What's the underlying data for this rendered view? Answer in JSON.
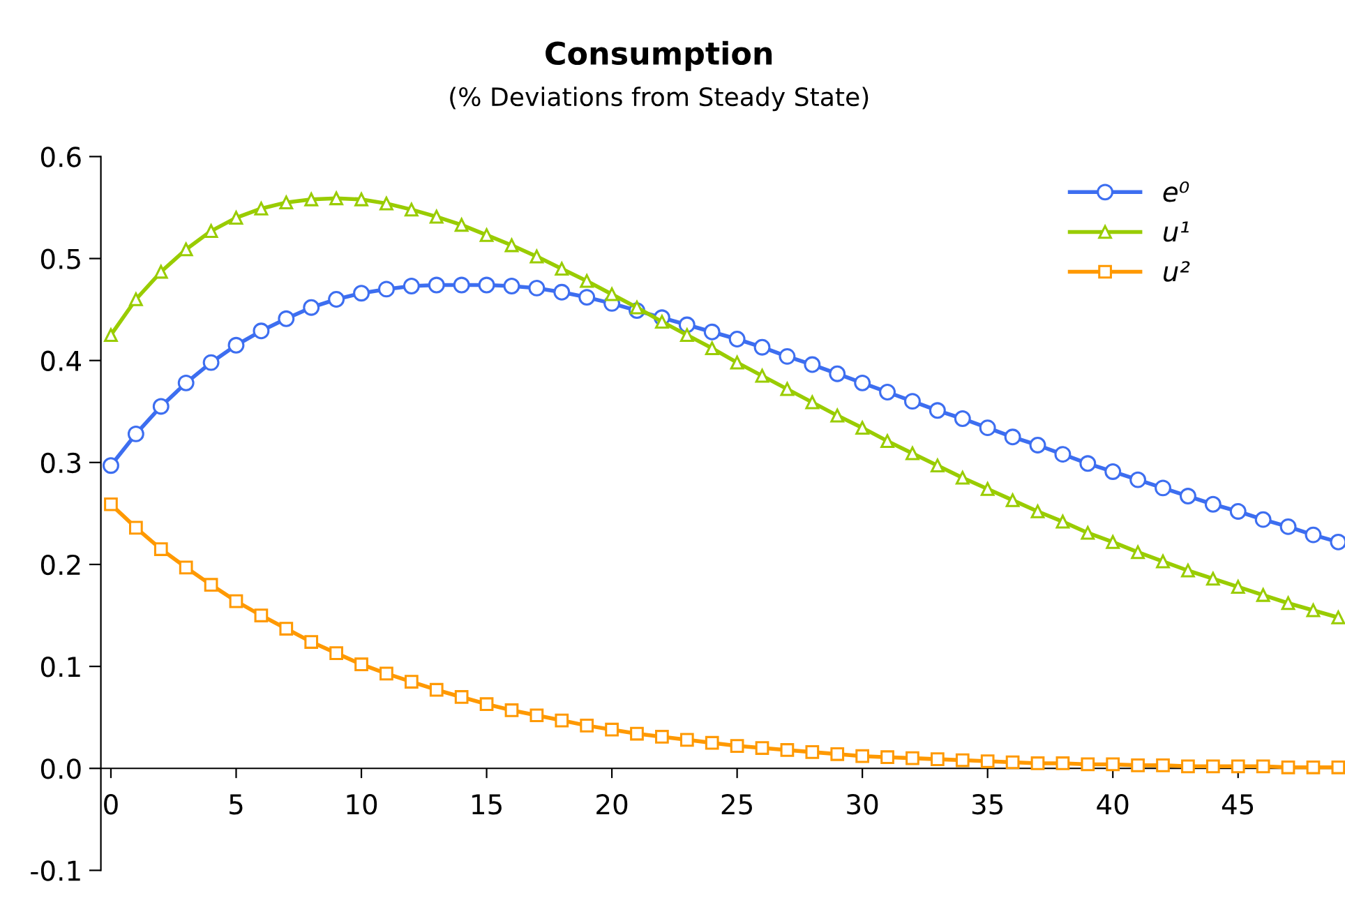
{
  "chart_data": {
    "type": "line",
    "title": "Consumption",
    "subtitle": "(% Deviations from Steady State)",
    "x": [
      0,
      1,
      2,
      3,
      4,
      5,
      6,
      7,
      8,
      9,
      10,
      11,
      12,
      13,
      14,
      15,
      16,
      17,
      18,
      19,
      20,
      21,
      22,
      23,
      24,
      25,
      26,
      27,
      28,
      29,
      30,
      31,
      32,
      33,
      34,
      35,
      36,
      37,
      38,
      39,
      40,
      41,
      42,
      43,
      44,
      45,
      46,
      47,
      48,
      49
    ],
    "xlim": [
      -0.4,
      49
    ],
    "xticks": [
      0,
      5,
      10,
      15,
      20,
      25,
      30,
      35,
      40,
      45
    ],
    "ylim": [
      -0.1,
      0.6
    ],
    "yticks": [
      {
        "value": -0.1,
        "label": "-0.1"
      },
      {
        "value": 0,
        "label": "0.0"
      },
      0.1,
      0.2,
      0.3,
      0.4,
      0.5,
      0.6
    ],
    "grid": false,
    "legend": "top right",
    "series": [
      {
        "name": "e⁰",
        "color": "#3d6ef0",
        "marker": "circle",
        "values": [
          0.297,
          0.328,
          0.355,
          0.378,
          0.398,
          0.415,
          0.429,
          0.441,
          0.452,
          0.46,
          0.466,
          0.47,
          0.473,
          0.474,
          0.474,
          0.474,
          0.473,
          0.471,
          0.467,
          0.462,
          0.456,
          0.449,
          0.442,
          0.435,
          0.428,
          0.421,
          0.413,
          0.404,
          0.396,
          0.387,
          0.378,
          0.369,
          0.36,
          0.351,
          0.343,
          0.334,
          0.325,
          0.317,
          0.308,
          0.299,
          0.291,
          0.283,
          0.275,
          0.267,
          0.259,
          0.252,
          0.244,
          0.237,
          0.229,
          0.222
        ]
      },
      {
        "name": "u¹",
        "color": "#99cc00",
        "marker": "triangle",
        "values": [
          0.425,
          0.46,
          0.487,
          0.509,
          0.527,
          0.54,
          0.549,
          0.555,
          0.558,
          0.559,
          0.558,
          0.554,
          0.548,
          0.541,
          0.533,
          0.523,
          0.513,
          0.502,
          0.49,
          0.478,
          0.465,
          0.452,
          0.438,
          0.425,
          0.412,
          0.398,
          0.385,
          0.372,
          0.359,
          0.346,
          0.334,
          0.321,
          0.309,
          0.297,
          0.285,
          0.274,
          0.263,
          0.252,
          0.242,
          0.231,
          0.222,
          0.212,
          0.203,
          0.194,
          0.186,
          0.178,
          0.17,
          0.162,
          0.155,
          0.148
        ]
      },
      {
        "name": "u²",
        "color": "#ff9900",
        "marker": "square",
        "values": [
          0.259,
          0.236,
          0.215,
          0.197,
          0.18,
          0.164,
          0.15,
          0.137,
          0.124,
          0.113,
          0.102,
          0.093,
          0.085,
          0.077,
          0.07,
          0.063,
          0.057,
          0.052,
          0.047,
          0.042,
          0.038,
          0.034,
          0.031,
          0.028,
          0.025,
          0.022,
          0.02,
          0.018,
          0.016,
          0.014,
          0.012,
          0.011,
          0.01,
          0.009,
          0.008,
          0.007,
          0.006,
          0.005,
          0.005,
          0.004,
          0.004,
          0.003,
          0.003,
          0.002,
          0.002,
          0.002,
          0.002,
          0.001,
          0.001,
          0.001
        ]
      }
    ]
  }
}
